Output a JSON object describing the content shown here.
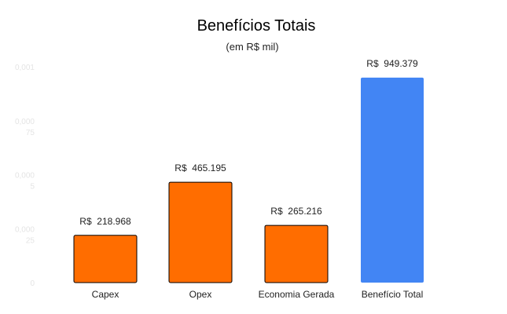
{
  "chart_data": {
    "type": "bar",
    "title": "Benefícios Totais",
    "subtitle": "(em R$ mil)",
    "categories": [
      "Capex",
      "Opex",
      "Economia Gerada",
      "Benefício Total"
    ],
    "values": [
      218.968,
      465.195,
      265.216,
      949.379
    ],
    "data_labels": [
      "R$  218.968",
      "R$  465.195",
      "R$  265.216",
      "R$  949.379"
    ],
    "colors": [
      "#ff6d00",
      "#ff6d00",
      "#ff6d00",
      "#4285f4"
    ],
    "y_ticks": [
      {
        "value": 0,
        "lines": [
          "0"
        ]
      },
      {
        "value": 250,
        "lines": [
          "0,000",
          "25"
        ]
      },
      {
        "value": 500,
        "lines": [
          "0,000",
          "5"
        ]
      },
      {
        "value": 750,
        "lines": [
          "0,000",
          "75"
        ]
      },
      {
        "value": 1000,
        "lines": [
          "0,001"
        ]
      }
    ],
    "ylim": [
      0,
      1000
    ],
    "xlabel": "",
    "ylabel": "",
    "grid": false,
    "legend": "none"
  }
}
